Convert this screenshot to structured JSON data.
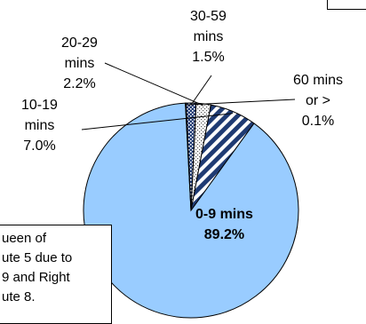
{
  "chart_data": {
    "type": "pie",
    "slices": [
      {
        "label_lines": [
          "0-9 mins",
          "89.2%"
        ],
        "value": 89.2,
        "color": "#99ccff",
        "pattern": "none"
      },
      {
        "label_lines": [
          "60 mins",
          "or >",
          "0.1%"
        ],
        "value": 0.1,
        "color": "#ffffff",
        "pattern": "none"
      },
      {
        "label_lines": [
          "30-59",
          "mins",
          "1.5%"
        ],
        "value": 1.5,
        "color": "#1f3b73",
        "pattern": "dots"
      },
      {
        "label_lines": [
          "20-29",
          "mins",
          "2.2%"
        ],
        "value": 2.2,
        "color": "#ffffff",
        "pattern": "dots"
      },
      {
        "label_lines": [
          "10-19",
          "mins",
          "7.0%"
        ],
        "value": 7.0,
        "color": "#1f3b73",
        "pattern": "diagonal"
      }
    ]
  },
  "note": {
    "lines": [
      "ueen of",
      "ute 5 due to",
      "9 and Right",
      "ute 8."
    ]
  }
}
